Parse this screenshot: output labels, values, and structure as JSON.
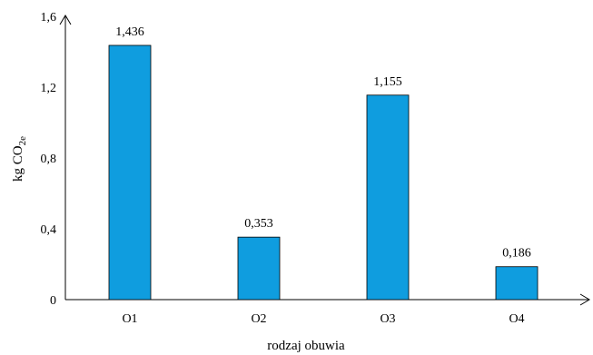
{
  "chart_data": {
    "type": "bar",
    "categories": [
      "O1",
      "O2",
      "O3",
      "O4"
    ],
    "values": [
      1.436,
      0.353,
      1.155,
      0.186
    ],
    "data_labels": [
      "1,436",
      "0,353",
      "1,155",
      "0,186"
    ],
    "y_ticks": [
      0,
      0.4,
      0.8,
      1.2,
      1.6
    ],
    "y_tick_labels": [
      "0",
      "0,4",
      "0,8",
      "1,2",
      "1,6"
    ],
    "ylim": [
      0,
      1.6
    ],
    "ylabel_main": "kg CO",
    "ylabel_sub": "2e",
    "xlabel": "rodzaj obuwia",
    "grid": false,
    "bar_color": "#0f9ddf",
    "bar_edge_color": "#000000"
  }
}
